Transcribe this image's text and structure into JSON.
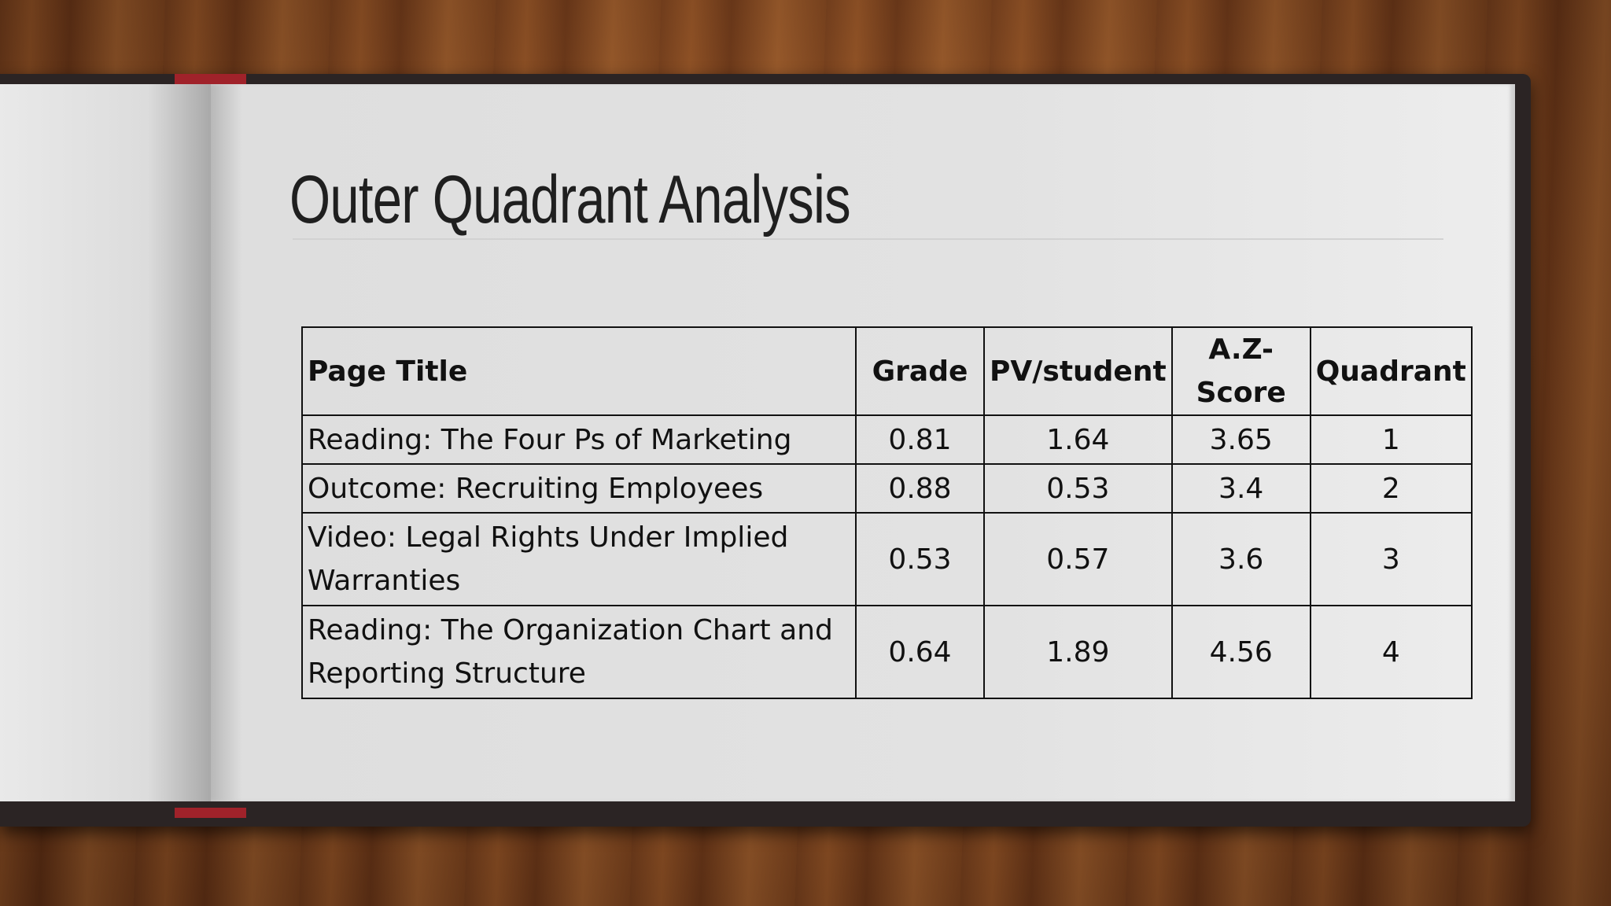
{
  "slide": {
    "title": "Outer Quadrant Analysis",
    "table": {
      "header": [
        "Page Title",
        "Grade",
        "PV/student",
        "A.Z-Score",
        "Quadrant"
      ],
      "rows": [
        [
          "Reading: The Four Ps of Marketing",
          "0.81",
          "1.64",
          "3.65",
          "1"
        ],
        [
          "Outcome: Recruiting Employees",
          "0.88",
          "0.53",
          "3.4",
          "2"
        ],
        [
          "Video: Legal Rights Under Implied Warranties",
          "0.53",
          "0.57",
          "3.6",
          "3"
        ],
        [
          "Reading: The Organization Chart and Reporting Structure",
          "0.64",
          "1.89",
          "4.56",
          "4"
        ]
      ]
    }
  }
}
